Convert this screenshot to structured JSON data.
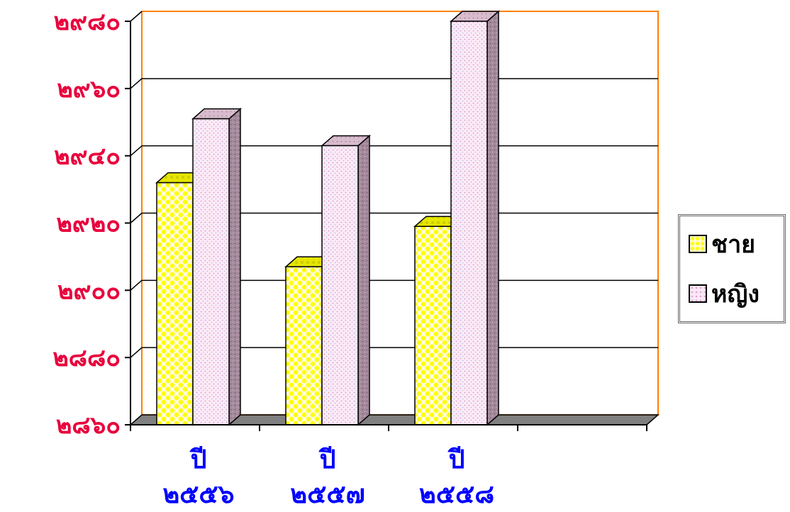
{
  "chart_data": {
    "type": "bar",
    "categories": [
      "ปี\n๒๕๕๖",
      "ปี\n๒๕๕๗",
      "ปี\n๒๕๕๘"
    ],
    "category_lines": [
      [
        "ปี",
        "๒๕๕๖"
      ],
      [
        "ปี",
        "๒๕๕๗"
      ],
      [
        "ปี",
        "๒๕๕๘"
      ]
    ],
    "series": [
      {
        "name": "ชาย",
        "values": [
          2932,
          2907,
          2919
        ],
        "color": "#ffff66"
      },
      {
        "name": "หญิง",
        "values": [
          2951,
          2943,
          2980
        ],
        "color": "#fbe8f6"
      }
    ],
    "ylim": [
      2860,
      2980
    ],
    "yticks": [
      2860,
      2880,
      2900,
      2920,
      2940,
      2960,
      2980
    ],
    "ytick_labels": [
      "๒๘๖๐",
      "๒๘๘๐",
      "๒๙๐๐",
      "๒๙๒๐",
      "๒๙๔๐",
      "๒๙๖๐",
      "๒๙๘๐"
    ],
    "grid": true,
    "three_d": true,
    "legend": "right",
    "colors": {
      "tick_label": "#e8003c",
      "category_label": "#0000ff",
      "wall_border": "#ff8000",
      "floor": "#808080",
      "bar_male": "#ffff66",
      "bar_female": "#fbe8f6"
    },
    "title": "",
    "xlabel": "",
    "ylabel": ""
  }
}
